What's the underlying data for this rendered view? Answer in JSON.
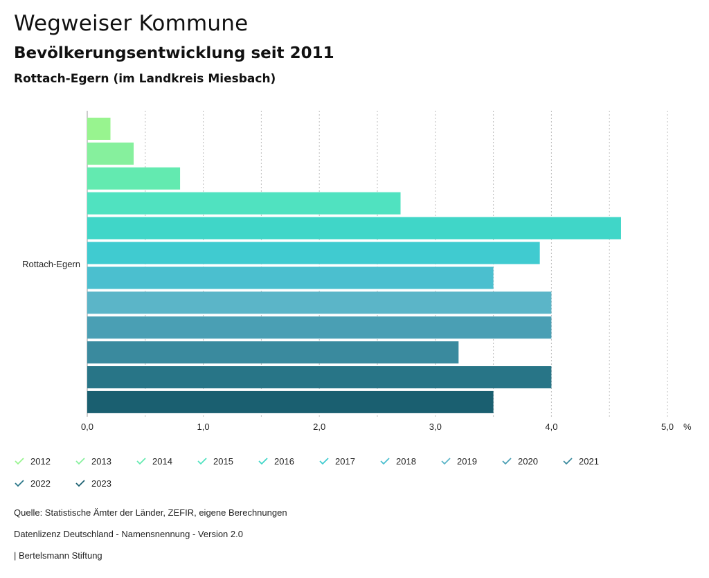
{
  "header": {
    "title": "Wegweiser Kommune",
    "subtitle": "Bevölkerungsentwicklung seit 2011",
    "region": "Rottach-Egern (im Landkreis Miesbach)"
  },
  "chart_data": {
    "type": "bar",
    "orientation": "horizontal",
    "categories": [
      "Rottach-Egern"
    ],
    "series": [
      {
        "name": "2012",
        "values": [
          0.2
        ],
        "color": "#98f48f"
      },
      {
        "name": "2013",
        "values": [
          0.4
        ],
        "color": "#86f09d"
      },
      {
        "name": "2014",
        "values": [
          0.8
        ],
        "color": "#63eab0"
      },
      {
        "name": "2015",
        "values": [
          2.7
        ],
        "color": "#50e2c0"
      },
      {
        "name": "2016",
        "values": [
          4.6
        ],
        "color": "#40d6c8"
      },
      {
        "name": "2017",
        "values": [
          3.9
        ],
        "color": "#40cbd0"
      },
      {
        "name": "2018",
        "values": [
          3.5
        ],
        "color": "#4bbfcf"
      },
      {
        "name": "2019",
        "values": [
          4.0
        ],
        "color": "#5bb5c8"
      },
      {
        "name": "2020",
        "values": [
          4.0
        ],
        "color": "#4a9fb4"
      },
      {
        "name": "2021",
        "values": [
          3.2
        ],
        "color": "#3a8a9e"
      },
      {
        "name": "2022",
        "values": [
          4.0
        ],
        "color": "#287587"
      },
      {
        "name": "2023",
        "values": [
          3.5
        ],
        "color": "#1a5f70"
      }
    ],
    "xlim": [
      0,
      5.0
    ],
    "xticks": [
      "0,0",
      "1,0",
      "2,0",
      "3,0",
      "4,0",
      "5,0"
    ],
    "xunit": "%",
    "grid": true,
    "legend_position": "bottom"
  },
  "footer": {
    "source": "Quelle: Statistische Ämter der Länder, ZEFIR, eigene Berechnungen",
    "license": "Datenlizenz Deutschland - Namensnennung - Version 2.0",
    "publisher": "| Bertelsmann Stiftung"
  }
}
